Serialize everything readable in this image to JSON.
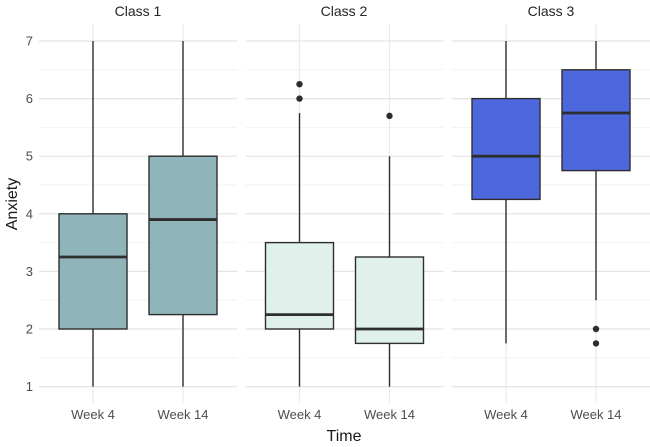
{
  "chart_data": {
    "type": "boxplot",
    "title": "",
    "xlabel": "Time",
    "ylabel": "Anxiety",
    "ylim": [
      1,
      7
    ],
    "yticks": [
      "1",
      "2",
      "3",
      "4",
      "5",
      "6",
      "7"
    ],
    "minor_gridlines": [
      1.5,
      2.5,
      3.5,
      4.5,
      5.5,
      6.5
    ],
    "categories": [
      "Week 4",
      "Week 14"
    ],
    "grid": "major and minor horizontal, vertical per category",
    "legend": "none",
    "facets": [
      {
        "label": "Class 1",
        "fill": "#8FB5BB",
        "boxes": [
          {
            "category": "Week 4",
            "whisker_low": 1.0,
            "q1": 2.0,
            "median": 3.25,
            "q3": 4.0,
            "whisker_high": 7.0,
            "outliers": []
          },
          {
            "category": "Week 14",
            "whisker_low": 1.0,
            "q1": 2.25,
            "median": 3.9,
            "q3": 5.0,
            "whisker_high": 7.0,
            "outliers": []
          }
        ]
      },
      {
        "label": "Class 2",
        "fill": "#DFF1EA",
        "boxes": [
          {
            "category": "Week 4",
            "whisker_low": 1.0,
            "q1": 2.0,
            "median": 2.25,
            "q3": 3.5,
            "whisker_high": 5.75,
            "outliers": [
              6.0,
              6.25
            ]
          },
          {
            "category": "Week 14",
            "whisker_low": 1.0,
            "q1": 1.75,
            "median": 2.0,
            "q3": 3.25,
            "whisker_high": 5.0,
            "outliers": [
              5.7
            ]
          }
        ]
      },
      {
        "label": "Class 3",
        "fill": "#4D68DC",
        "boxes": [
          {
            "category": "Week 4",
            "whisker_low": 1.75,
            "q1": 4.25,
            "median": 5.0,
            "q3": 6.0,
            "whisker_high": 7.0,
            "outliers": []
          },
          {
            "category": "Week 14",
            "whisker_low": 2.5,
            "q1": 4.75,
            "median": 5.75,
            "q3": 6.5,
            "whisker_high": 7.0,
            "outliers": [
              2.0,
              1.75
            ]
          }
        ]
      }
    ],
    "colors": {
      "box_stroke": "#2E2E2E",
      "median": "#2E2E2E",
      "whisker": "#2E2E2E",
      "outlier": "#2D2D2D",
      "grid_major": "#E4E4E4",
      "grid_minor": "#F2F2F2",
      "grid_vertical": "#E9E9E9",
      "tick_label": "#4D4D4D",
      "title_text": "#1A1A1A",
      "background": "#FFFFFF"
    }
  }
}
